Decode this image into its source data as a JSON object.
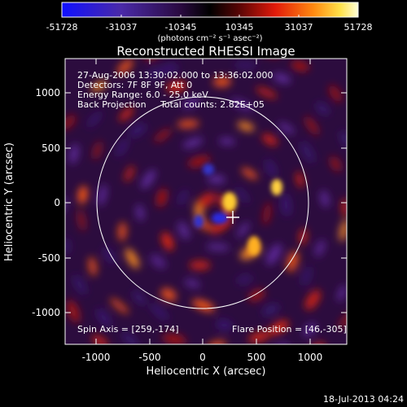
{
  "colorbar": {
    "tick_labels": [
      "-51728",
      "-31037",
      "-10345",
      "10345",
      "31037",
      "51728"
    ],
    "unit_label": "(photons cm⁻² s⁻¹ asec⁻²)",
    "range": [
      -51728,
      51728
    ]
  },
  "image": {
    "title": "Reconstructed RHESSI Image",
    "info_lines": [
      "27-Aug-2006 13:30:02.000 to 13:36:02.000",
      "Detectors: 7F 8F 9F, Att 0",
      "Energy Range: 6.0 - 25.0 keV",
      "Back Projection     Total counts: 2.82E+05"
    ],
    "spin_axis": "Spin Axis = [259,-174]",
    "flare_position": "Flare Position = [46,-305]",
    "x_axis_label": "Heliocentric X (arcsec)",
    "y_axis_label": "Heliocentric Y (arcsec)",
    "x_ticks": [
      "-1000",
      "-500",
      "0",
      "500",
      "1000"
    ],
    "y_ticks": [
      "1000",
      "500",
      "0",
      "-500",
      "-1000"
    ],
    "x_range": [
      -1290,
      1290
    ],
    "y_range": [
      -1150,
      1290
    ],
    "solar_radius_arcsec": 980,
    "marker_position": [
      270,
      -130
    ]
  },
  "timestamp": "18-Jul-2013 04:24"
}
